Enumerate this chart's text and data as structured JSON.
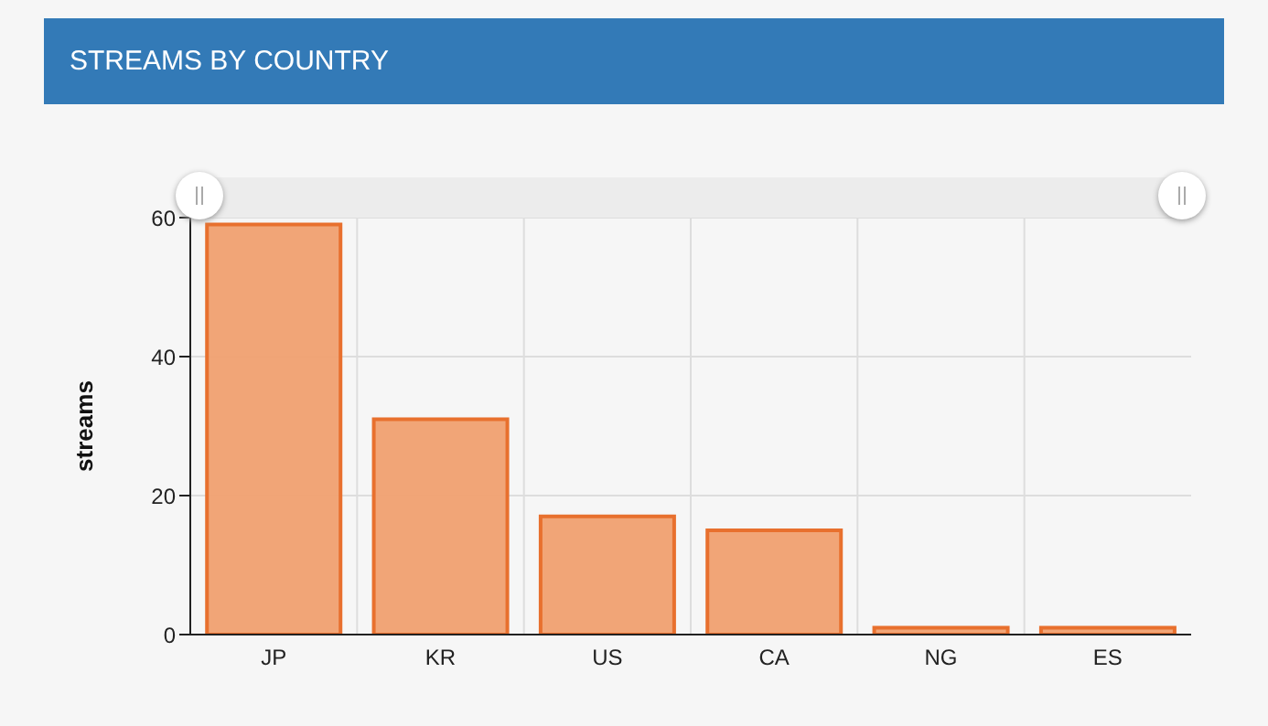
{
  "chart_data": {
    "type": "bar",
    "title": "STREAMS BY COUNTRY",
    "ylabel": "streams",
    "categories": [
      "JP",
      "KR",
      "US",
      "CA",
      "NG",
      "ES"
    ],
    "values": [
      59,
      31,
      17,
      15,
      1,
      1
    ],
    "color": "#f0a070",
    "ylim": [
      0,
      60
    ],
    "yticks": [
      0,
      20,
      40,
      60
    ],
    "grid": true
  }
}
